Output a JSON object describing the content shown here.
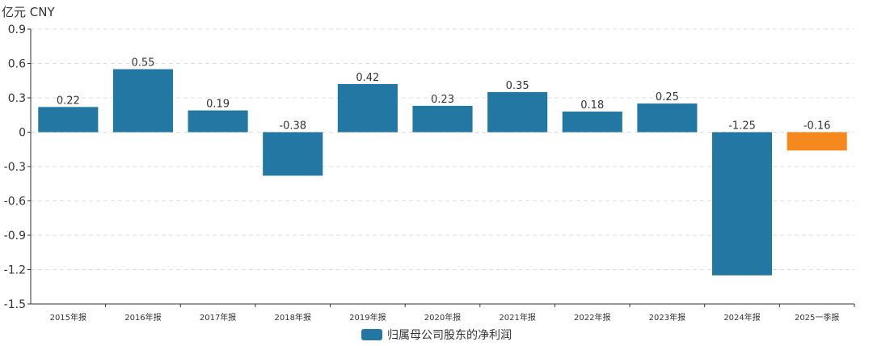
{
  "chart_data": {
    "type": "bar",
    "unit_label": "亿元  CNY",
    "categories": [
      "2015年报",
      "2016年报",
      "2017年报",
      "2018年报",
      "2019年报",
      "2020年报",
      "2021年报",
      "2022年报",
      "2023年报",
      "2024年报",
      "2025一季报"
    ],
    "series": [
      {
        "name": "归属母公司股东的净利润",
        "values": [
          0.22,
          0.55,
          0.19,
          -0.38,
          0.42,
          0.23,
          0.35,
          0.18,
          0.25,
          -1.25,
          -0.16
        ],
        "labels": [
          "0.22",
          "0.55",
          "0.19",
          "-0.38",
          "0.42",
          "0.23",
          "0.35",
          "0.18",
          "0.25",
          "-1.25",
          "-0.16"
        ]
      }
    ],
    "highlight_index": 10,
    "colors": {
      "bar": "#2277a3",
      "highlight": "#f5891e",
      "grid": "#dddddd",
      "axis": "#333333",
      "text": "#333333"
    },
    "ylim": [
      -1.5,
      0.9
    ],
    "yticks": [
      "0.9",
      "0.6",
      "0.3",
      "0",
      "-0.3",
      "-0.6",
      "-0.9",
      "-1.2",
      "-1.5"
    ],
    "ytick_values": [
      0.9,
      0.6,
      0.3,
      0,
      -0.3,
      -0.6,
      -0.9,
      -1.2,
      -1.5
    ],
    "legend": "归属母公司股东的净利润",
    "grid": true
  }
}
